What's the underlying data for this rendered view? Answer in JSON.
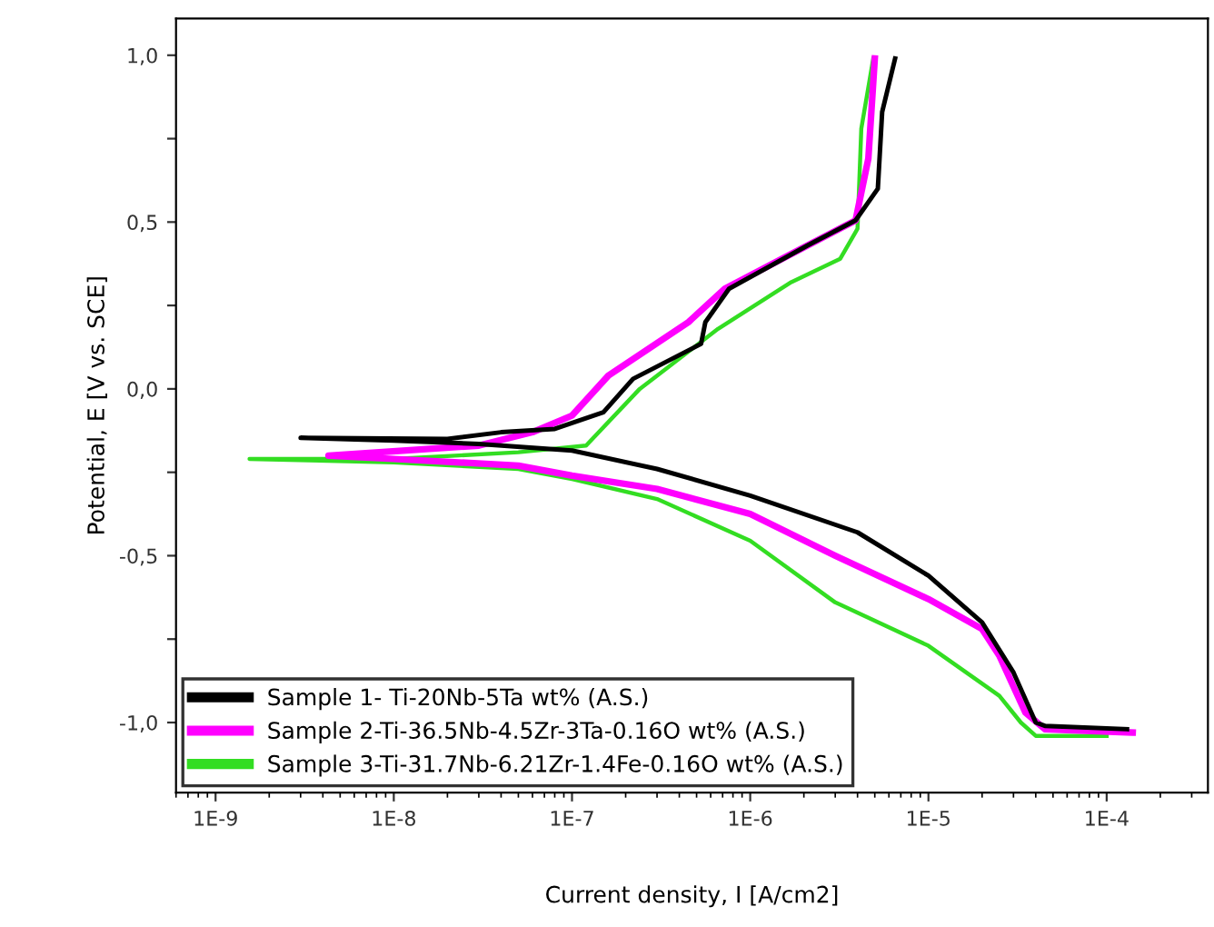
{
  "chart_data": {
    "type": "line",
    "xlabel": "Current density, I [A/cm2]",
    "ylabel": "Potential, E [V vs. SCE]",
    "log": "x",
    "grid": false,
    "legend": "bottom left",
    "line_style": "solid",
    "marker": "none",
    "xlim": [
      6e-10,
      0.00037
    ],
    "xticks": [
      {
        "value": 1e-09,
        "label": "1E-9"
      },
      {
        "value": 1e-08,
        "label": "1E-8"
      },
      {
        "value": 1e-07,
        "label": "1E-7"
      },
      {
        "value": 1e-06,
        "label": "1E-6"
      },
      {
        "value": 1e-05,
        "label": "1E-5"
      },
      {
        "value": 0.0001,
        "label": "1E-4"
      }
    ],
    "ylim": [
      -1.21,
      1.11
    ],
    "yticks": [
      {
        "value": -1.0,
        "label": "-1,0"
      },
      {
        "value": -0.75,
        "label": null
      },
      {
        "value": -0.5,
        "label": "-0,5"
      },
      {
        "value": -0.25,
        "label": null
      },
      {
        "value": 0.0,
        "label": "0,0"
      },
      {
        "value": 0.25,
        "label": null
      },
      {
        "value": 0.5,
        "label": "0,5"
      },
      {
        "value": 0.75,
        "label": null
      },
      {
        "value": 1.0,
        "label": "1,0"
      }
    ],
    "series": [
      {
        "name": "Sample 1- Ti-20Nb-5Ta wt% (A.S.)",
        "color": "#000000",
        "x": [
          0.00013,
          4.5e-05,
          4e-05,
          3e-05,
          2e-05,
          1e-05,
          4e-06,
          1e-06,
          3e-07,
          1e-07,
          3e-08,
          1e-08,
          3e-09,
          2e-08,
          4e-08,
          8e-08,
          1.5e-07,
          2.2e-07,
          5.3e-07,
          5.6e-07,
          7.6e-07,
          2.1e-06,
          3.9e-06,
          5.2e-06,
          5.5e-06,
          6.5e-06
        ],
        "values": [
          -1.02,
          -1.01,
          -1.0,
          -0.85,
          -0.7,
          -0.56,
          -0.43,
          -0.32,
          -0.24,
          -0.185,
          -0.165,
          -0.155,
          -0.147,
          -0.15,
          -0.13,
          -0.12,
          -0.07,
          0.03,
          0.135,
          0.2,
          0.3,
          0.43,
          0.505,
          0.6,
          0.83,
          0.99
        ]
      },
      {
        "name": "Sample 2-Ti-36.5Nb-4.5Zr-3Ta-0.16O wt% (A.S.)",
        "color": "#ff00ff",
        "x": [
          0.00014,
          4.5e-05,
          3.5e-05,
          2.5e-05,
          2e-05,
          1e-05,
          3e-06,
          1e-06,
          3e-07,
          1e-07,
          5e-08,
          1e-08,
          4.3e-09,
          3e-08,
          6e-08,
          1e-07,
          1.6e-07,
          4.5e-07,
          7.2e-07,
          2.1e-06,
          3.9e-06,
          4.6e-06,
          5e-06
        ],
        "values": [
          -1.03,
          -1.02,
          -0.97,
          -0.8,
          -0.72,
          -0.63,
          -0.5,
          -0.375,
          -0.3,
          -0.26,
          -0.23,
          -0.21,
          -0.2,
          -0.17,
          -0.13,
          -0.08,
          0.04,
          0.2,
          0.3,
          0.43,
          0.505,
          0.69,
          0.99
        ]
      },
      {
        "name": "Sample 3-Ti-31.7Nb-6.21Zr-1.4Fe-0.16O wt% (A.S.)",
        "color": "#33dd22",
        "x": [
          0.0001,
          4e-05,
          3.3e-05,
          2.5e-05,
          1e-05,
          3e-06,
          1e-06,
          3e-07,
          1e-07,
          5e-08,
          1e-08,
          1.55e-09,
          1e-08,
          5e-08,
          1.2e-07,
          2.4e-07,
          6.6e-07,
          1.7e-06,
          3.2e-06,
          4e-06,
          4.2e-06,
          4.9e-06
        ],
        "values": [
          -1.04,
          -1.04,
          -1.0,
          -0.92,
          -0.77,
          -0.64,
          -0.455,
          -0.33,
          -0.27,
          -0.24,
          -0.22,
          -0.21,
          -0.21,
          -0.19,
          -0.17,
          0.0,
          0.18,
          0.32,
          0.39,
          0.48,
          0.78,
          0.99
        ]
      }
    ]
  }
}
